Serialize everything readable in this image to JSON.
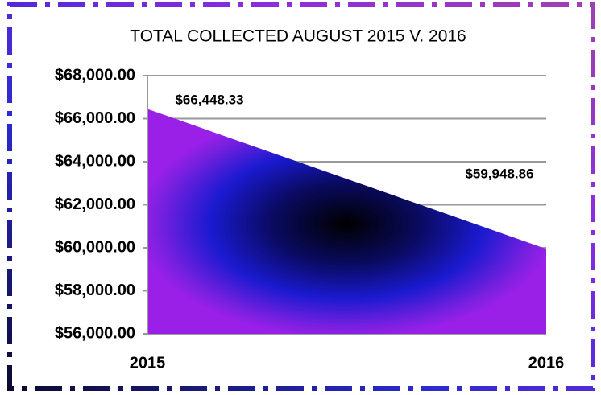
{
  "chart_data": {
    "type": "area",
    "title": "TOTAL COLLECTED AUGUST 2015 V. 2016",
    "categories": [
      "2015",
      "2016"
    ],
    "values": [
      66448.33,
      59948.86
    ],
    "value_labels": [
      "$66,448.33",
      "$59,948.86"
    ],
    "ylim": [
      56000,
      68000
    ],
    "yticks": [
      {
        "value": 56000,
        "label": "$56,000.00"
      },
      {
        "value": 58000,
        "label": "$58,000.00"
      },
      {
        "value": 60000,
        "label": "$60,000.00"
      },
      {
        "value": 62000,
        "label": "$62,000.00"
      },
      {
        "value": 64000,
        "label": "$64,000.00"
      },
      {
        "value": 66000,
        "label": "$66,000.00"
      },
      {
        "value": 68000,
        "label": "$68,000.00"
      }
    ],
    "grid": true
  }
}
